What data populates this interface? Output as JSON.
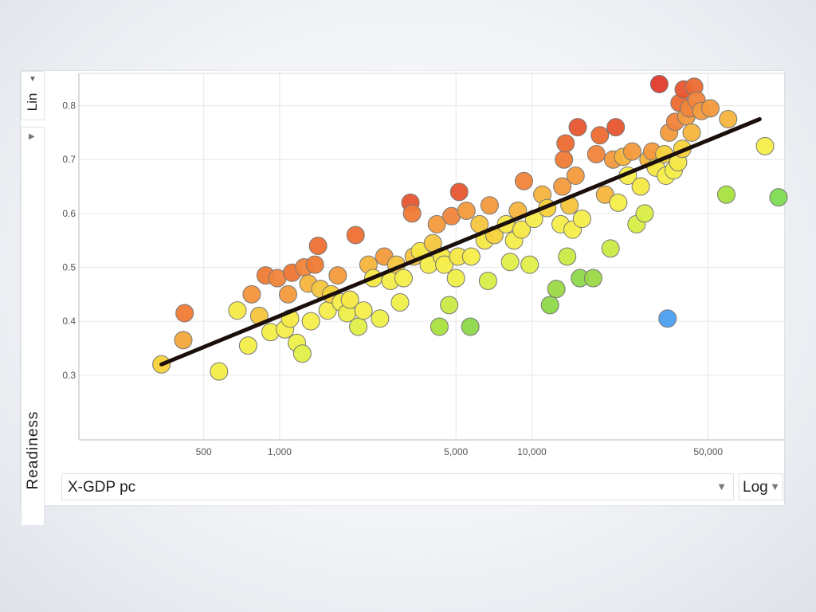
{
  "controls": {
    "y_scale": "Lin",
    "y_variable": "Readiness",
    "x_variable": "X-GDP pc",
    "x_scale": "Log",
    "dropdown_icon": "triangle-down-icon",
    "side_icon": "triangle-right-icon"
  },
  "chart_data": {
    "type": "scatter",
    "xlabel": "",
    "ylabel": "Readiness",
    "x_scale": "log",
    "y_scale": "linear",
    "xlim": [
      160,
      100000
    ],
    "ylim": [
      0.18,
      0.86
    ],
    "x_ticks": [
      500,
      1000,
      5000,
      10000,
      50000
    ],
    "x_tick_labels": [
      "500",
      "1,000",
      "5,000",
      "10,000",
      "50,000"
    ],
    "y_ticks": [
      0.3,
      0.4,
      0.5,
      0.6,
      0.7,
      0.8
    ],
    "y_tick_labels": [
      "0.3",
      "0.4",
      "0.5",
      "0.6",
      "0.7",
      "0.8"
    ],
    "grid": true,
    "colors": {
      "red": "#e0402f",
      "orange": "#f08a3c",
      "yellow": "#f5ec45",
      "green": "#7ddb52",
      "blue": "#4b9ff0",
      "trendline": "#1a0f0a"
    },
    "trendline": {
      "x": [
        340,
        80000
      ],
      "y": [
        0.32,
        0.775
      ]
    },
    "points": [
      {
        "x": 340,
        "y": 0.32,
        "c": "#f5d23a"
      },
      {
        "x": 420,
        "y": 0.415,
        "c": "#ef7a35"
      },
      {
        "x": 415,
        "y": 0.365,
        "c": "#f2a63c"
      },
      {
        "x": 575,
        "y": 0.307,
        "c": "#f3ee48"
      },
      {
        "x": 680,
        "y": 0.42,
        "c": "#f6ea45"
      },
      {
        "x": 750,
        "y": 0.355,
        "c": "#f3ee48"
      },
      {
        "x": 775,
        "y": 0.45,
        "c": "#f3953c"
      },
      {
        "x": 830,
        "y": 0.41,
        "c": "#f5c53e"
      },
      {
        "x": 880,
        "y": 0.485,
        "c": "#ef7a35"
      },
      {
        "x": 920,
        "y": 0.38,
        "c": "#f3ee48"
      },
      {
        "x": 980,
        "y": 0.48,
        "c": "#f0843a"
      },
      {
        "x": 1050,
        "y": 0.385,
        "c": "#f5ee4a"
      },
      {
        "x": 1080,
        "y": 0.45,
        "c": "#f39a3c"
      },
      {
        "x": 1100,
        "y": 0.405,
        "c": "#f6ea45"
      },
      {
        "x": 1120,
        "y": 0.49,
        "c": "#ee7533"
      },
      {
        "x": 1170,
        "y": 0.36,
        "c": "#eef04a"
      },
      {
        "x": 1230,
        "y": 0.34,
        "c": "#e0ef48"
      },
      {
        "x": 1250,
        "y": 0.5,
        "c": "#f0843a"
      },
      {
        "x": 1300,
        "y": 0.47,
        "c": "#f5b43c"
      },
      {
        "x": 1330,
        "y": 0.4,
        "c": "#f5ee4a"
      },
      {
        "x": 1380,
        "y": 0.505,
        "c": "#ef7a35"
      },
      {
        "x": 1420,
        "y": 0.54,
        "c": "#ee6f32"
      },
      {
        "x": 1450,
        "y": 0.46,
        "c": "#f5c53e"
      },
      {
        "x": 1550,
        "y": 0.42,
        "c": "#f5ee4a"
      },
      {
        "x": 1600,
        "y": 0.45,
        "c": "#f5d23a"
      },
      {
        "x": 1700,
        "y": 0.485,
        "c": "#f39a3c"
      },
      {
        "x": 1750,
        "y": 0.435,
        "c": "#f5ee4a"
      },
      {
        "x": 1850,
        "y": 0.415,
        "c": "#eef04a"
      },
      {
        "x": 1900,
        "y": 0.44,
        "c": "#f5e845"
      },
      {
        "x": 2000,
        "y": 0.56,
        "c": "#ee6f32"
      },
      {
        "x": 2050,
        "y": 0.39,
        "c": "#e0ef48"
      },
      {
        "x": 2150,
        "y": 0.42,
        "c": "#f5ee4a"
      },
      {
        "x": 2250,
        "y": 0.505,
        "c": "#f5b43c"
      },
      {
        "x": 2350,
        "y": 0.48,
        "c": "#f5e845"
      },
      {
        "x": 2500,
        "y": 0.405,
        "c": "#eef04a"
      },
      {
        "x": 2600,
        "y": 0.52,
        "c": "#f39a3c"
      },
      {
        "x": 2750,
        "y": 0.475,
        "c": "#f5ee4a"
      },
      {
        "x": 2900,
        "y": 0.505,
        "c": "#f5c53e"
      },
      {
        "x": 3000,
        "y": 0.435,
        "c": "#eef04a"
      },
      {
        "x": 3100,
        "y": 0.48,
        "c": "#f5ee4a"
      },
      {
        "x": 3300,
        "y": 0.62,
        "c": "#e8552f"
      },
      {
        "x": 3350,
        "y": 0.6,
        "c": "#ef7a35"
      },
      {
        "x": 3400,
        "y": 0.52,
        "c": "#f5c53e"
      },
      {
        "x": 3600,
        "y": 0.53,
        "c": "#f5e845"
      },
      {
        "x": 3900,
        "y": 0.505,
        "c": "#f5ee4a"
      },
      {
        "x": 4050,
        "y": 0.545,
        "c": "#f5c53e"
      },
      {
        "x": 4200,
        "y": 0.58,
        "c": "#f39a3c"
      },
      {
        "x": 4300,
        "y": 0.39,
        "c": "#a8e23e"
      },
      {
        "x": 4400,
        "y": 0.52,
        "c": "#f5e845"
      },
      {
        "x": 4500,
        "y": 0.505,
        "c": "#f5ee4a"
      },
      {
        "x": 4700,
        "y": 0.43,
        "c": "#c8ea44"
      },
      {
        "x": 4800,
        "y": 0.595,
        "c": "#f0843a"
      },
      {
        "x": 5000,
        "y": 0.48,
        "c": "#eef04a"
      },
      {
        "x": 5100,
        "y": 0.52,
        "c": "#f5e845"
      },
      {
        "x": 5150,
        "y": 0.64,
        "c": "#e8552f"
      },
      {
        "x": 5500,
        "y": 0.605,
        "c": "#f39a3c"
      },
      {
        "x": 5700,
        "y": 0.39,
        "c": "#8cd94a"
      },
      {
        "x": 5750,
        "y": 0.52,
        "c": "#f5ee4a"
      },
      {
        "x": 6200,
        "y": 0.58,
        "c": "#f5c53e"
      },
      {
        "x": 6500,
        "y": 0.55,
        "c": "#f5e845"
      },
      {
        "x": 6700,
        "y": 0.475,
        "c": "#d8ed46"
      },
      {
        "x": 6800,
        "y": 0.615,
        "c": "#f39a3c"
      },
      {
        "x": 7100,
        "y": 0.56,
        "c": "#f5d23a"
      },
      {
        "x": 7900,
        "y": 0.58,
        "c": "#f5e845"
      },
      {
        "x": 8200,
        "y": 0.51,
        "c": "#e0ef48"
      },
      {
        "x": 8500,
        "y": 0.55,
        "c": "#f5ee4a"
      },
      {
        "x": 8800,
        "y": 0.605,
        "c": "#f5b43c"
      },
      {
        "x": 9100,
        "y": 0.57,
        "c": "#f5e845"
      },
      {
        "x": 9300,
        "y": 0.66,
        "c": "#f0843a"
      },
      {
        "x": 9800,
        "y": 0.505,
        "c": "#e0ef48"
      },
      {
        "x": 10200,
        "y": 0.59,
        "c": "#f5ee4a"
      },
      {
        "x": 11000,
        "y": 0.635,
        "c": "#f5b43c"
      },
      {
        "x": 11500,
        "y": 0.61,
        "c": "#f5d23a"
      },
      {
        "x": 11800,
        "y": 0.43,
        "c": "#8cd94a"
      },
      {
        "x": 12500,
        "y": 0.46,
        "c": "#9ad846"
      },
      {
        "x": 13000,
        "y": 0.58,
        "c": "#f5ee4a"
      },
      {
        "x": 13200,
        "y": 0.65,
        "c": "#f39a3c"
      },
      {
        "x": 13400,
        "y": 0.7,
        "c": "#ef7a35"
      },
      {
        "x": 13600,
        "y": 0.73,
        "c": "#ec6a30"
      },
      {
        "x": 13800,
        "y": 0.52,
        "c": "#c8ea44"
      },
      {
        "x": 14100,
        "y": 0.615,
        "c": "#f5c53e"
      },
      {
        "x": 14500,
        "y": 0.57,
        "c": "#f5ee4a"
      },
      {
        "x": 14900,
        "y": 0.67,
        "c": "#f39a3c"
      },
      {
        "x": 15200,
        "y": 0.76,
        "c": "#e8552f"
      },
      {
        "x": 15500,
        "y": 0.48,
        "c": "#8cd94a"
      },
      {
        "x": 15800,
        "y": 0.59,
        "c": "#f5ee4a"
      },
      {
        "x": 17500,
        "y": 0.48,
        "c": "#9ad846"
      },
      {
        "x": 18000,
        "y": 0.71,
        "c": "#f0843a"
      },
      {
        "x": 18600,
        "y": 0.745,
        "c": "#ec6a30"
      },
      {
        "x": 19500,
        "y": 0.635,
        "c": "#f5b43c"
      },
      {
        "x": 20500,
        "y": 0.535,
        "c": "#c8ea44"
      },
      {
        "x": 21000,
        "y": 0.7,
        "c": "#f39a3c"
      },
      {
        "x": 21500,
        "y": 0.76,
        "c": "#e8552f"
      },
      {
        "x": 22000,
        "y": 0.62,
        "c": "#f5ee4a"
      },
      {
        "x": 23000,
        "y": 0.705,
        "c": "#f5b43c"
      },
      {
        "x": 24000,
        "y": 0.67,
        "c": "#f5ee4a"
      },
      {
        "x": 25000,
        "y": 0.715,
        "c": "#f39a3c"
      },
      {
        "x": 26000,
        "y": 0.58,
        "c": "#d8ed46"
      },
      {
        "x": 27000,
        "y": 0.65,
        "c": "#f5e845"
      },
      {
        "x": 28000,
        "y": 0.6,
        "c": "#d8ed46"
      },
      {
        "x": 29000,
        "y": 0.7,
        "c": "#f5b43c"
      },
      {
        "x": 30000,
        "y": 0.715,
        "c": "#f39a3c"
      },
      {
        "x": 31000,
        "y": 0.685,
        "c": "#f5e845"
      },
      {
        "x": 32000,
        "y": 0.84,
        "c": "#e03a2c"
      },
      {
        "x": 33500,
        "y": 0.71,
        "c": "#f5d23a"
      },
      {
        "x": 34000,
        "y": 0.67,
        "c": "#f5ee4a"
      },
      {
        "x": 34500,
        "y": 0.405,
        "c": "#4b9ff0"
      },
      {
        "x": 35000,
        "y": 0.75,
        "c": "#f39a3c"
      },
      {
        "x": 36500,
        "y": 0.68,
        "c": "#f5ee4a"
      },
      {
        "x": 37000,
        "y": 0.77,
        "c": "#f0843a"
      },
      {
        "x": 38000,
        "y": 0.695,
        "c": "#f5e845"
      },
      {
        "x": 38500,
        "y": 0.805,
        "c": "#ec6a30"
      },
      {
        "x": 39500,
        "y": 0.72,
        "c": "#f5d23a"
      },
      {
        "x": 40000,
        "y": 0.83,
        "c": "#e8552f"
      },
      {
        "x": 41000,
        "y": 0.78,
        "c": "#f39a3c"
      },
      {
        "x": 42000,
        "y": 0.795,
        "c": "#f0843a"
      },
      {
        "x": 43000,
        "y": 0.75,
        "c": "#f5b43c"
      },
      {
        "x": 44000,
        "y": 0.835,
        "c": "#ec6a30"
      },
      {
        "x": 45000,
        "y": 0.81,
        "c": "#f0843a"
      },
      {
        "x": 47000,
        "y": 0.79,
        "c": "#f39a3c"
      },
      {
        "x": 51000,
        "y": 0.795,
        "c": "#f39a3c"
      },
      {
        "x": 59000,
        "y": 0.635,
        "c": "#a8e23e"
      },
      {
        "x": 60000,
        "y": 0.775,
        "c": "#f5b43c"
      },
      {
        "x": 84000,
        "y": 0.725,
        "c": "#f5ee4a"
      },
      {
        "x": 95000,
        "y": 0.63,
        "c": "#7ddb52"
      }
    ]
  }
}
